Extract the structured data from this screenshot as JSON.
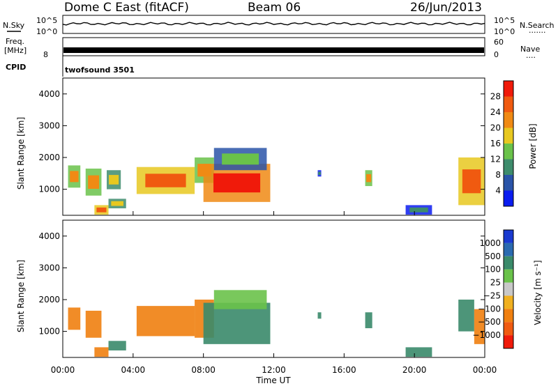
{
  "header": {
    "station": "Dome C East (fitACF)",
    "beam": "Beam 06",
    "date": "26/Jun/2013"
  },
  "strip_nsky": {
    "left_label": "N.Sky",
    "left_ticks": [
      "10^5",
      "10^0"
    ],
    "right_label": "N.Search",
    "right_ticks": [
      "10^5",
      "10^0"
    ],
    "right_dots": "·······"
  },
  "strip_freq": {
    "left_label_1": "Freq.",
    "left_label_2": "[MHz]",
    "left_ticks": [
      "8"
    ],
    "right_label": "Nave",
    "right_ticks": [
      "60",
      "0"
    ],
    "right_dots": "····"
  },
  "cpid": {
    "label": "CPID",
    "program": "twofsound 3501"
  },
  "x_axis": {
    "label": "Time UT",
    "ticks": [
      "00:00",
      "04:00",
      "08:00",
      "12:00",
      "16:00",
      "20:00",
      "00:00"
    ],
    "range_hours": [
      0,
      24
    ]
  },
  "power_panel": {
    "ylabel": "Slant Range [km]",
    "yticks": [
      "1000",
      "2000",
      "3000",
      "4000"
    ],
    "colorbar_label": "Power [dB]",
    "colorbar_ticks": [
      "4",
      "8",
      "12",
      "16",
      "20",
      "24",
      "28"
    ],
    "colors": [
      "#0a1cf0",
      "#2a54a8",
      "#3e8c6c",
      "#6ac24a",
      "#e8c820",
      "#f08a14",
      "#f05a10",
      "#f01a0a"
    ]
  },
  "velocity_panel": {
    "ylabel": "Slant Range [km]",
    "yticks": [
      "1000",
      "2000",
      "3000",
      "4000"
    ],
    "colorbar_label": "Velocity [m s⁻¹]",
    "colorbar_ticks": [
      "1000",
      "500",
      "100",
      "25",
      "−25",
      "−100",
      "−500",
      "−1000"
    ],
    "colors": [
      "#1a3ad0",
      "#2a6ab0",
      "#3a8a6a",
      "#6ac24a",
      "#c8c8c8",
      "#f0b020",
      "#f08010",
      "#f05a10",
      "#f01a0a"
    ]
  },
  "chart_data": {
    "type": "heatmap",
    "x_unit": "hours UT",
    "y_unit": "km",
    "xlim": [
      0,
      24
    ],
    "ylim": [
      180,
      4500
    ],
    "power_regions": [
      {
        "t0": 0.3,
        "t1": 1.0,
        "r0": 1050,
        "r1": 1750,
        "level": 20
      },
      {
        "t0": 1.3,
        "t1": 2.2,
        "r0": 800,
        "r1": 1650,
        "level": 20
      },
      {
        "t0": 2.5,
        "t1": 3.3,
        "r0": 1000,
        "r1": 1600,
        "level": 16
      },
      {
        "t0": 1.8,
        "t1": 2.6,
        "r0": 200,
        "r1": 500,
        "level": 24
      },
      {
        "t0": 2.6,
        "t1": 3.6,
        "r0": 400,
        "r1": 700,
        "level": 16
      },
      {
        "t0": 4.2,
        "t1": 7.5,
        "r0": 850,
        "r1": 1700,
        "level": 24
      },
      {
        "t0": 7.5,
        "t1": 8.6,
        "r0": 1200,
        "r1": 2000,
        "level": 20
      },
      {
        "t0": 8.0,
        "t1": 11.8,
        "r0": 600,
        "r1": 1800,
        "level": 28
      },
      {
        "t0": 8.6,
        "t1": 11.6,
        "r0": 1600,
        "r1": 2300,
        "level": 12
      },
      {
        "t0": 14.5,
        "t1": 14.7,
        "r0": 1400,
        "r1": 1600,
        "level": 8
      },
      {
        "t0": 17.2,
        "t1": 17.6,
        "r0": 1100,
        "r1": 1600,
        "level": 20
      },
      {
        "t0": 22.5,
        "t1": 24.0,
        "r0": 500,
        "r1": 2000,
        "level": 24
      },
      {
        "t0": 19.5,
        "t1": 21.0,
        "r0": 200,
        "r1": 500,
        "level": 8
      }
    ],
    "velocity_regions": [
      {
        "t0": 0.3,
        "t1": 1.0,
        "r0": 1050,
        "r1": 1750,
        "v": -300
      },
      {
        "t0": 1.3,
        "t1": 2.2,
        "r0": 800,
        "r1": 1650,
        "v": -300
      },
      {
        "t0": 1.8,
        "t1": 2.6,
        "r0": 200,
        "r1": 500,
        "v": -500
      },
      {
        "t0": 2.6,
        "t1": 3.6,
        "r0": 400,
        "r1": 700,
        "v": 150
      },
      {
        "t0": 4.2,
        "t1": 7.5,
        "r0": 850,
        "r1": 1800,
        "v": -400
      },
      {
        "t0": 7.5,
        "t1": 8.6,
        "r0": 800,
        "r1": 2000,
        "v": -200
      },
      {
        "t0": 8.0,
        "t1": 11.8,
        "r0": 600,
        "r1": 1900,
        "v": 200
      },
      {
        "t0": 8.6,
        "t1": 11.6,
        "r0": 1700,
        "r1": 2300,
        "v": 50
      },
      {
        "t0": 14.5,
        "t1": 14.7,
        "r0": 1400,
        "r1": 1600,
        "v": 150
      },
      {
        "t0": 17.2,
        "t1": 17.6,
        "r0": 1100,
        "r1": 1600,
        "v": 200
      },
      {
        "t0": 22.5,
        "t1": 23.4,
        "r0": 1000,
        "r1": 2000,
        "v": 150
      },
      {
        "t0": 23.4,
        "t1": 24.0,
        "r0": 600,
        "r1": 1700,
        "v": -150
      },
      {
        "t0": 19.5,
        "t1": 21.0,
        "r0": 200,
        "r1": 500,
        "v": 200
      }
    ]
  }
}
